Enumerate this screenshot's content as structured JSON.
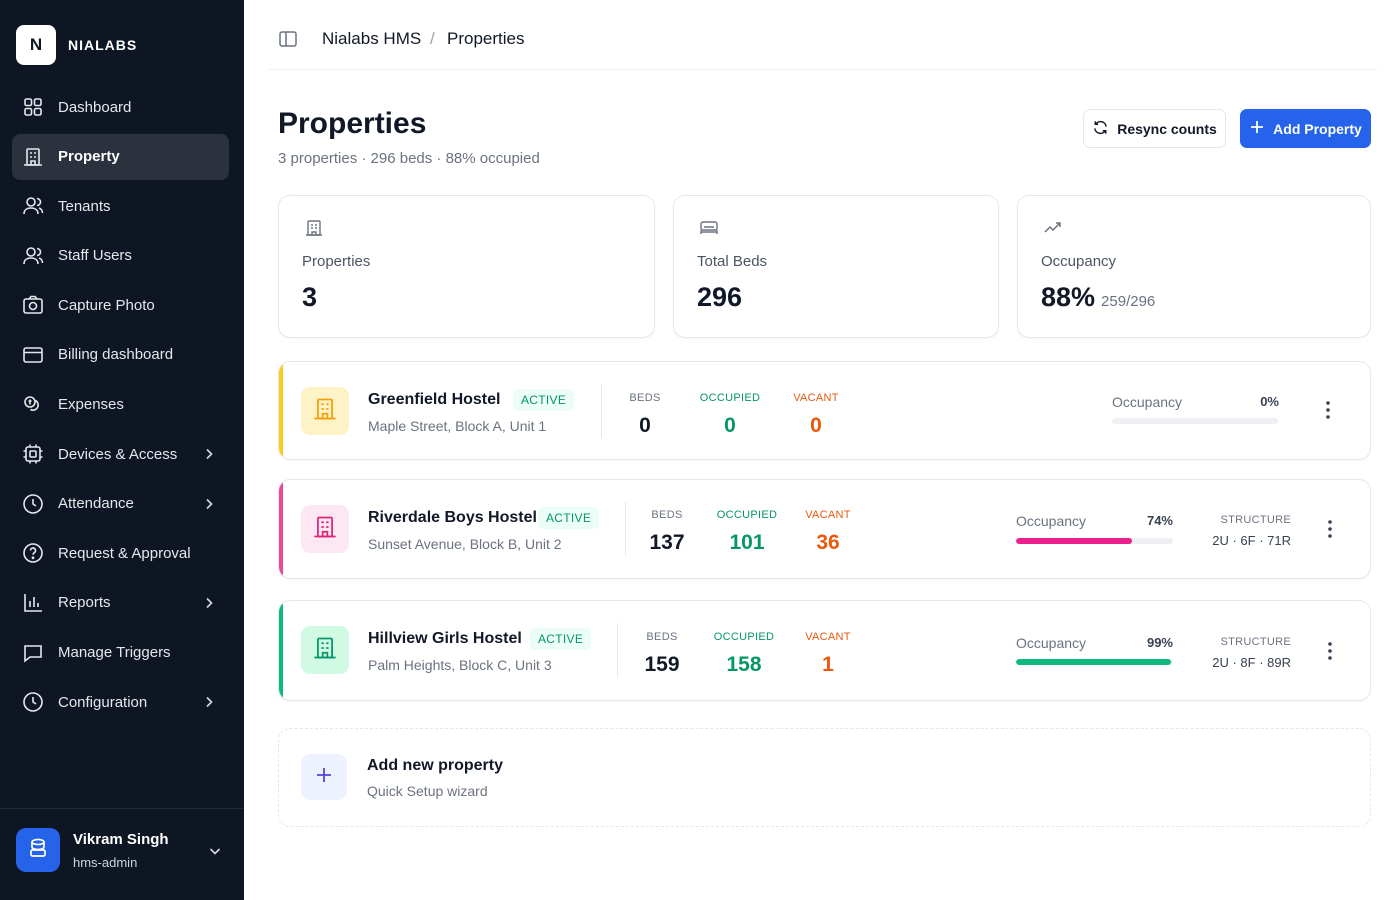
{
  "brand": {
    "logo_letter": "N",
    "name": "NIALABS"
  },
  "sidebar": {
    "items": [
      {
        "label": "Dashboard",
        "icon": "grid-icon",
        "active": false,
        "chevron": false
      },
      {
        "label": "Property",
        "icon": "building-icon",
        "active": true,
        "chevron": false
      },
      {
        "label": "Tenants",
        "icon": "users-icon",
        "active": false,
        "chevron": false
      },
      {
        "label": "Staff Users",
        "icon": "user-group-icon",
        "active": false,
        "chevron": false
      },
      {
        "label": "Capture Photo",
        "icon": "camera-icon",
        "active": false,
        "chevron": false
      },
      {
        "label": "Billing dashboard",
        "icon": "credit-card-icon",
        "active": false,
        "chevron": false
      },
      {
        "label": "Expenses",
        "icon": "coins-icon",
        "active": false,
        "chevron": false
      },
      {
        "label": "Devices & Access",
        "icon": "chip-icon",
        "active": false,
        "chevron": true
      },
      {
        "label": "Attendance",
        "icon": "clock-icon",
        "active": false,
        "chevron": true
      },
      {
        "label": "Request & Approval",
        "icon": "question-circle-icon",
        "active": false,
        "chevron": false
      },
      {
        "label": "Reports",
        "icon": "bar-chart-icon",
        "active": false,
        "chevron": true
      },
      {
        "label": "Manage Triggers",
        "icon": "message-square-icon",
        "active": false,
        "chevron": false
      },
      {
        "label": "Configuration",
        "icon": "clock-settings-icon",
        "active": false,
        "chevron": true
      }
    ]
  },
  "user": {
    "name": "Vikram Singh",
    "role": "hms-admin",
    "icon": "database-icon"
  },
  "breadcrumb": {
    "root": "Nialabs HMS",
    "separator": "/",
    "current": "Properties"
  },
  "page": {
    "title": "Properties",
    "subtitle": "3 properties · 296 beds · 88% occupied",
    "resync_label": "Resync counts",
    "add_label": "Add Property"
  },
  "stats": [
    {
      "label": "Properties",
      "value": "3",
      "sub": "",
      "icon": "building-icon"
    },
    {
      "label": "Total Beds",
      "value": "296",
      "sub": "",
      "icon": "bed-icon"
    },
    {
      "label": "Occupancy",
      "value": "88%",
      "sub": "259/296",
      "icon": "trending-up-icon"
    }
  ],
  "properties": [
    {
      "name": "Greenfield Hostel",
      "status": "ACTIVE",
      "address": "Maple Street, Block A, Unit 1",
      "beds_label": "BEDS",
      "beds": "0",
      "occupied_label": "OCCUPIED",
      "occupied": "0",
      "vacant_label": "VACANT",
      "vacant": "0",
      "occupancy_label": "Occupancy",
      "occupancy_pct": "0%",
      "occupancy_fraction": 0,
      "structure_label": "",
      "structure": "",
      "accent": "#facc15",
      "icon_bg": "#fef3c7",
      "icon_color": "#f59e0b",
      "bar_color": "#d1d5db"
    },
    {
      "name": "Riverdale Boys Hostel",
      "status": "ACTIVE",
      "address": "Sunset Avenue, Block B, Unit 2",
      "beds_label": "BEDS",
      "beds": "137",
      "occupied_label": "OCCUPIED",
      "occupied": "101",
      "vacant_label": "VACANT",
      "vacant": "36",
      "occupancy_label": "Occupancy",
      "occupancy_pct": "74%",
      "occupancy_fraction": 0.74,
      "structure_label": "STRUCTURE",
      "structure": "2U · 6F · 71R",
      "accent": "#ec4899",
      "icon_bg": "#fce7f3",
      "icon_color": "#db2777",
      "bar_color": "#ec1f8e"
    },
    {
      "name": "Hillview Girls Hostel",
      "status": "ACTIVE",
      "address": "Palm Heights, Block C, Unit 3",
      "beds_label": "BEDS",
      "beds": "159",
      "occupied_label": "OCCUPIED",
      "occupied": "158",
      "vacant_label": "VACANT",
      "vacant": "1",
      "occupancy_label": "Occupancy",
      "occupancy_pct": "99%",
      "occupancy_fraction": 0.99,
      "structure_label": "STRUCTURE",
      "structure": "2U · 8F · 89R",
      "accent": "#10b981",
      "icon_bg": "#d1fae5",
      "icon_color": "#059669",
      "bar_color": "#10b981"
    }
  ],
  "add_new": {
    "title": "Add new property",
    "subtitle": "Quick Setup wizard"
  }
}
